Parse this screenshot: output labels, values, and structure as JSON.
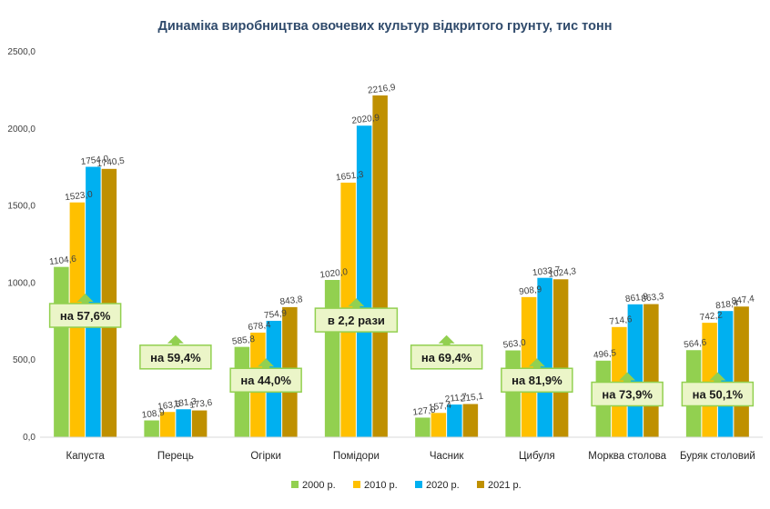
{
  "chart_data": {
    "type": "bar",
    "title": "Динаміка виробництва овочевих культур відкритого грунту, тис тонн",
    "categories": [
      "Капуста",
      "Перець",
      "Огірки",
      "Помідори",
      "Часник",
      "Цибуля",
      "Морква столова",
      "Буряк столовий"
    ],
    "series": [
      {
        "name": "2000 р.",
        "color": "#92d050",
        "values": [
          1104.6,
          108.9,
          585.8,
          1020.0,
          127.0,
          563.0,
          496.5,
          564.6
        ],
        "labels": [
          "1104,6",
          "108,9",
          "585,8",
          "1020,0",
          "127,0",
          "563,0",
          "496,5",
          "564,6"
        ]
      },
      {
        "name": "2010 р.",
        "color": "#ffc000",
        "values": [
          1523.0,
          163.6,
          678.4,
          1651.3,
          157.4,
          908.9,
          714.6,
          742.2
        ],
        "labels": [
          "1523,0",
          "163,6",
          "678,4",
          "1651,3",
          "157,4",
          "908,9",
          "714,6",
          "742,2"
        ]
      },
      {
        "name": "2020 р.",
        "color": "#00b0f0",
        "values": [
          1754.0,
          181.3,
          754.9,
          2020.9,
          211.7,
          1033.7,
          861.9,
          818.4
        ],
        "labels": [
          "1754,0",
          "181,3",
          "754,9",
          "2020,9",
          "211,7",
          "1033,7",
          "861,9",
          "818,4"
        ]
      },
      {
        "name": "2021 р.",
        "color": "#bf9000",
        "values": [
          1740.5,
          173.6,
          843.8,
          2216.9,
          215.1,
          1024.3,
          863.3,
          847.4
        ],
        "labels": [
          "1740,5",
          "173,6",
          "843,8",
          "2216,9",
          "215,1",
          "1024,3",
          "863,3",
          "847,4"
        ]
      }
    ],
    "ylim": [
      0,
      2500
    ],
    "yticks": [
      0,
      500,
      1000,
      1500,
      2000,
      2500
    ],
    "ytick_labels": [
      "0,0",
      "500,0",
      "1000,0",
      "1500,0",
      "2000,0",
      "2500,0"
    ],
    "grid": false,
    "legend": "bottom",
    "annotations": [
      {
        "category": "Капуста",
        "text": "на 57,6%",
        "level": 790
      },
      {
        "category": "Перець",
        "text": "на 59,4%",
        "level": 520
      },
      {
        "category": "Огірки",
        "text": "на 44,0%",
        "level": 370
      },
      {
        "category": "Помідори",
        "text": "в 2,2 рази",
        "level": 760
      },
      {
        "category": "Часник",
        "text": "на 69,4%",
        "level": 520
      },
      {
        "category": "Цибуля",
        "text": "на 81,9%",
        "level": 370
      },
      {
        "category": "Морква столова",
        "text": "на 73,9%",
        "level": 280
      },
      {
        "category": "Буряк столовий",
        "text": "на 50,1%",
        "level": 280
      }
    ],
    "annotation_fill": "#ebf5c8",
    "annotation_arrow_color": "#92d050"
  }
}
